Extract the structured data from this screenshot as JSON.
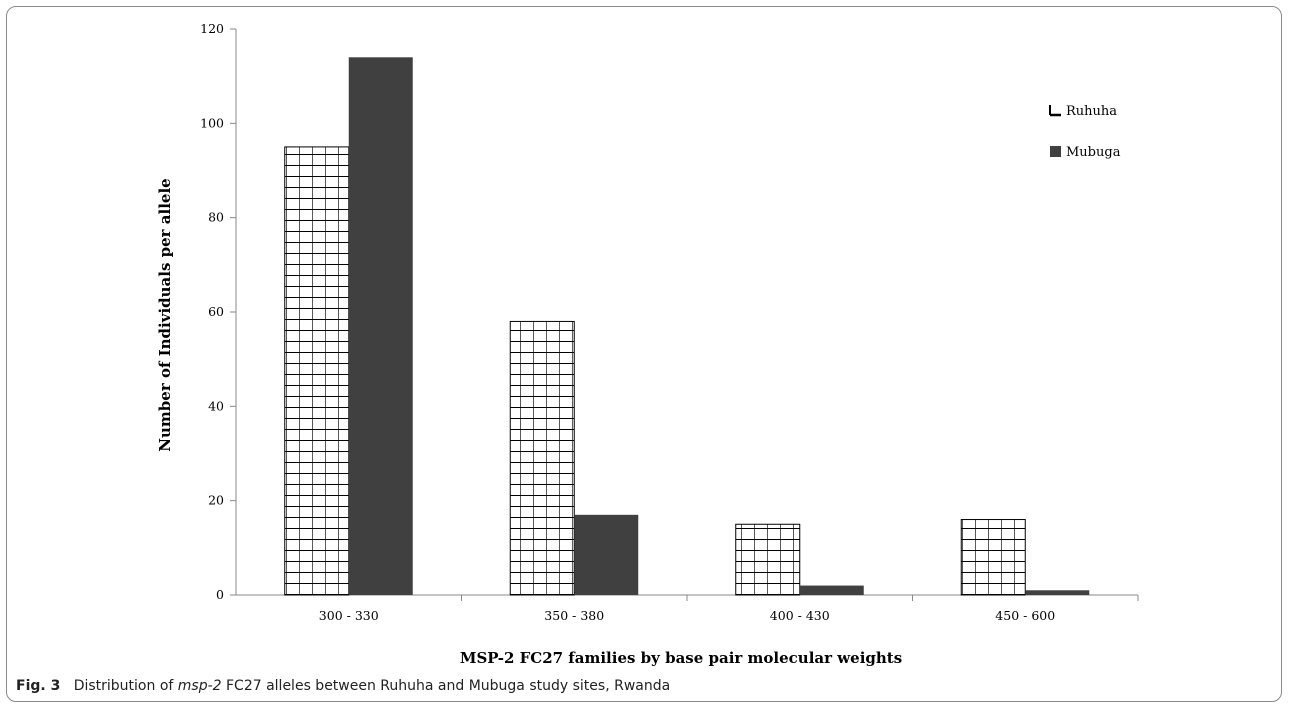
{
  "chart_data": {
    "type": "bar",
    "categories": [
      "300 - 330",
      "350 - 380",
      "400 - 430",
      "450 - 600"
    ],
    "series": [
      {
        "name": "Ruhuha",
        "values": [
          95,
          58,
          15,
          16
        ],
        "color": "#ffffff",
        "pattern": "grid"
      },
      {
        "name": "Mubuga",
        "values": [
          114,
          17,
          2,
          1
        ],
        "color": "#404040",
        "pattern": "solid"
      }
    ],
    "title": "",
    "xlabel": "MSP-2 FC27 families by base pair molecular weights",
    "ylabel": "Number of Individuals per allele",
    "ylim": [
      0,
      120
    ],
    "yticks": [
      0,
      20,
      40,
      60,
      80,
      100,
      120
    ],
    "grid": false,
    "legend_position": "top-right"
  },
  "caption": {
    "fig_label": "Fig. 3",
    "text_before": "Distribution of ",
    "text_italic": "msp-2",
    "text_after": " FC27 alleles between Ruhuha and Mubuga study sites, Rwanda"
  }
}
